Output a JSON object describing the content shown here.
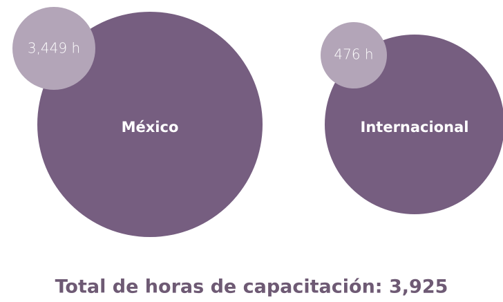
{
  "items": [
    {
      "label": "México",
      "hours": "3,449 h"
    },
    {
      "label": "Internacional",
      "hours": "476 h"
    }
  ],
  "total": "Total de horas de capacitación: 3,925"
}
